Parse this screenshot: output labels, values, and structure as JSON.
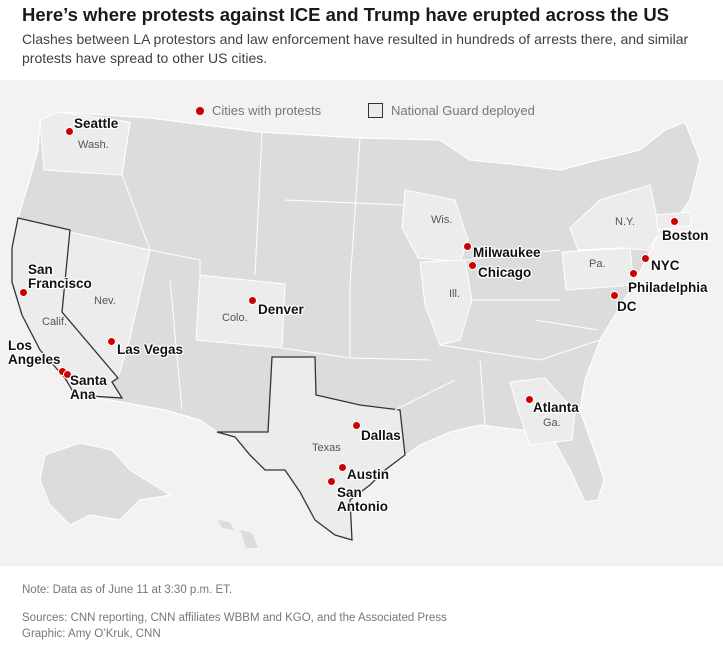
{
  "title": "Here’s where protests against ICE and Trump have erupted across the US",
  "subtitle": "Clashes between LA protestors and law enforcement have resulted in hundreds of arrests there, and similar protests have spread to other US cities.",
  "legend": {
    "protest_label": "Cities with protests",
    "guard_label": "National Guard deployed"
  },
  "colors": {
    "protest_dot": "#cc0000",
    "states_fill": "#dcdcdc",
    "highlight_fill": "#ececec",
    "guard_outline": "#333333"
  },
  "cities": [
    {
      "id": "seattle",
      "label": "Seattle"
    },
    {
      "id": "san-francisco",
      "label": "San Francisco"
    },
    {
      "id": "los-angeles",
      "label": "Los Angeles"
    },
    {
      "id": "santa-ana",
      "label": "Santa Ana"
    },
    {
      "id": "las-vegas",
      "label": "Las Vegas"
    },
    {
      "id": "denver",
      "label": "Denver"
    },
    {
      "id": "dallas",
      "label": "Dallas"
    },
    {
      "id": "austin",
      "label": "Austin"
    },
    {
      "id": "san-antonio",
      "label": "San Antonio"
    },
    {
      "id": "milwaukee",
      "label": "Milwaukee"
    },
    {
      "id": "chicago",
      "label": "Chicago"
    },
    {
      "id": "atlanta",
      "label": "Atlanta"
    },
    {
      "id": "boston",
      "label": "Boston"
    },
    {
      "id": "nyc",
      "label": "NYC"
    },
    {
      "id": "philadelphia",
      "label": "Philadelphia"
    },
    {
      "id": "dc",
      "label": "DC"
    }
  ],
  "states": {
    "wash": "Wash.",
    "calif": "Calif.",
    "nev": "Nev.",
    "colo": "Colo.",
    "texas": "Texas",
    "wis": "Wis.",
    "ill": "Ill.",
    "ga": "Ga.",
    "ny": "N.Y.",
    "pa": "Pa."
  },
  "guard_states": [
    "Calif.",
    "Texas"
  ],
  "note": "Note: Data as of June 11 at 3:30 p.m. ET.",
  "sources": "Sources: CNN reporting, CNN affiliates WBBM and KGO, and the Associated Press",
  "graphic": "Graphic: Amy O’Kruk, CNN"
}
